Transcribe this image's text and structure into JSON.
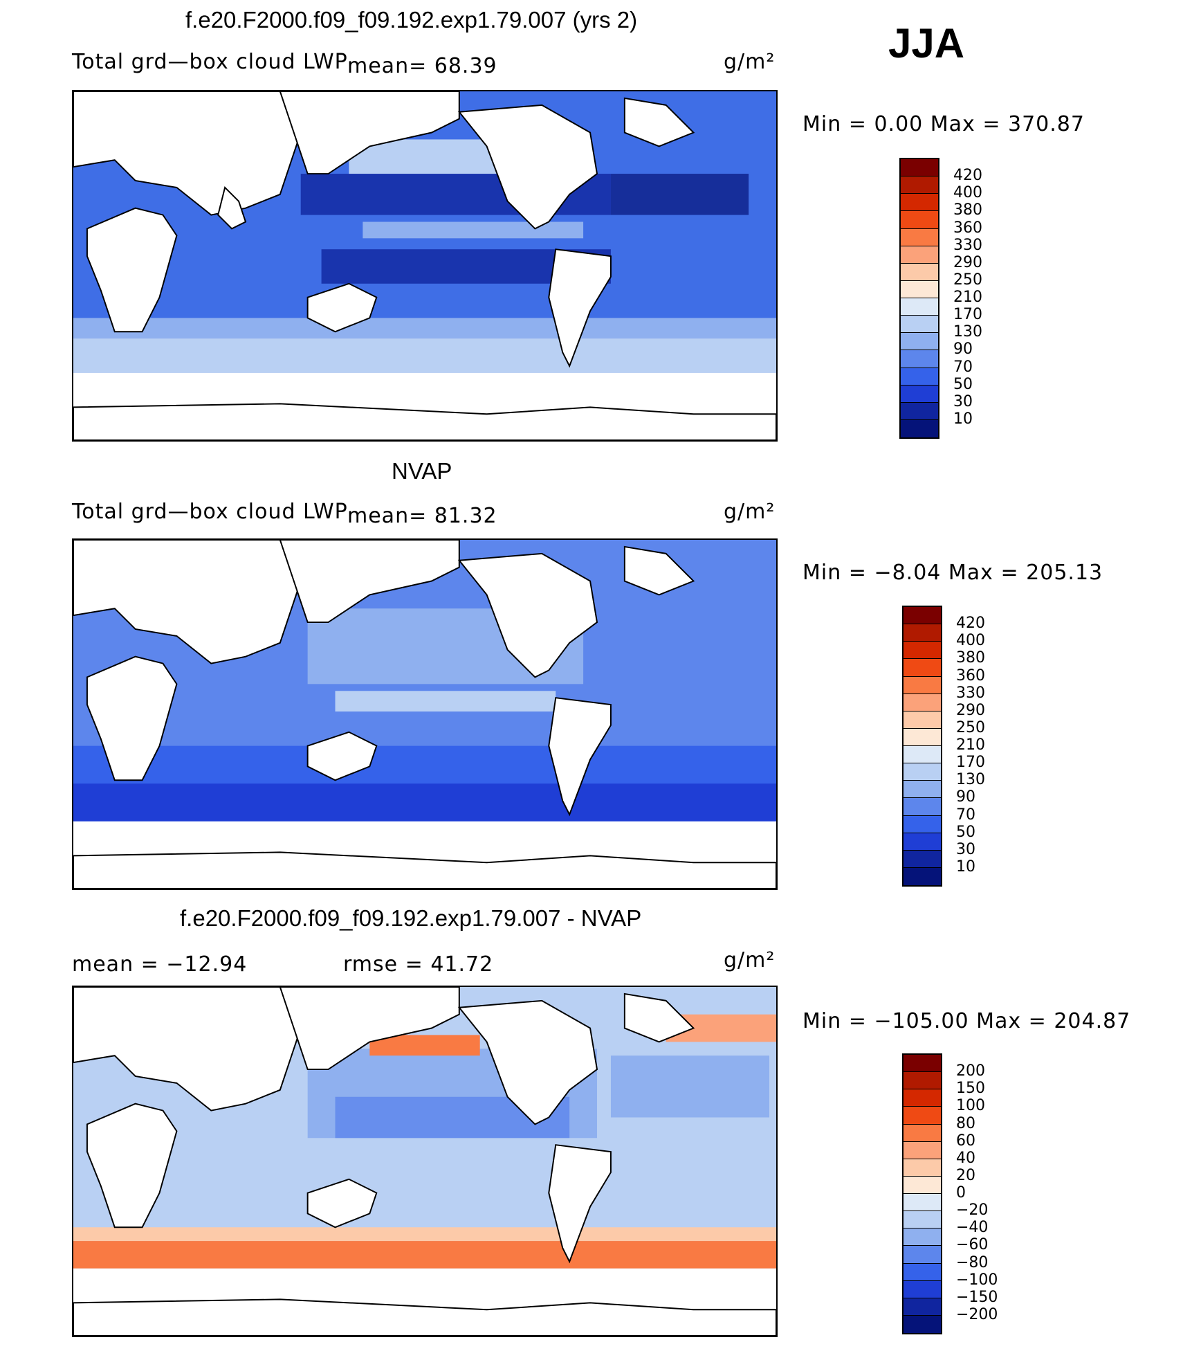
{
  "season": "JJA",
  "panels": [
    {
      "id": "model",
      "title": "f.e20.F2000.f09_f09.192.exp1.79.007 (yrs 2)",
      "variable": "Total grd—box cloud LWP",
      "mean_text": "mean=   68.39",
      "units": "g/m²",
      "minmax": "Min  =     0.00  Max  =  370.87",
      "colorbar_labels": [
        "420",
        "400",
        "380",
        "360",
        "330",
        "290",
        "250",
        "210",
        "170",
        "130",
        "90",
        "70",
        "50",
        "30",
        "10"
      ]
    },
    {
      "id": "obs",
      "title": "NVAP",
      "variable": "Total grd—box cloud LWP",
      "mean_text": "mean=   81.32",
      "units": "g/m²",
      "minmax": "Min  =   −8.04  Max  =  205.13",
      "colorbar_labels": [
        "420",
        "400",
        "380",
        "360",
        "330",
        "290",
        "250",
        "210",
        "170",
        "130",
        "90",
        "70",
        "50",
        "30",
        "10"
      ]
    },
    {
      "id": "diff",
      "title": "f.e20.F2000.f09_f09.192.exp1.79.007 - NVAP",
      "mean_text": "mean  =  −12.94",
      "rmse_text": "rmse  =    41.72",
      "units": "g/m²",
      "minmax": "Min  =  −105.00  Max  =  204.87",
      "colorbar_labels": [
        "200",
        "150",
        "100",
        "80",
        "60",
        "40",
        "20",
        "0",
        "−20",
        "−40",
        "−60",
        "−80",
        "−100",
        "−150",
        "−200"
      ]
    }
  ],
  "colors": {
    "lwp_scale": [
      "#7a0000",
      "#b01a00",
      "#d42800",
      "#ef4a14",
      "#f97a43",
      "#fba27a",
      "#fccaa9",
      "#fde8d6",
      "#dde9f7",
      "#b9d0f3",
      "#8fb0ef",
      "#5d86ec",
      "#3562ea",
      "#1f3ed5",
      "#10259f",
      "#051379"
    ],
    "diff_scale": [
      "#7a0000",
      "#b01a00",
      "#d42800",
      "#ef4a14",
      "#f97a43",
      "#fba27a",
      "#fccaa9",
      "#fde8d6",
      "#dde9f7",
      "#b9d0f3",
      "#8fb0ef",
      "#5d86ec",
      "#3562ea",
      "#1f3ed5",
      "#10259f",
      "#051379"
    ],
    "land": "#ffffff",
    "coast": "#000000"
  },
  "chart_data": [
    {
      "type": "heatmap",
      "title": "f.e20.F2000.f09_f09.192.exp1.79.007 (yrs 2)",
      "subtitle": "Total grd—box cloud LWP",
      "units": "g/m²",
      "mean": 68.39,
      "min": 0.0,
      "max": 370.87,
      "levels": [
        10,
        30,
        50,
        70,
        90,
        130,
        170,
        210,
        250,
        290,
        330,
        360,
        380,
        400,
        420
      ]
    },
    {
      "type": "heatmap",
      "title": "NVAP",
      "subtitle": "Total grd—box cloud LWP",
      "units": "g/m²",
      "mean": 81.32,
      "min": -8.04,
      "max": 205.13,
      "levels": [
        10,
        30,
        50,
        70,
        90,
        130,
        170,
        210,
        250,
        290,
        330,
        360,
        380,
        400,
        420
      ]
    },
    {
      "type": "heatmap",
      "title": "f.e20.F2000.f09_f09.192.exp1.79.007 - NVAP",
      "units": "g/m²",
      "mean": -12.94,
      "rmse": 41.72,
      "min": -105.0,
      "max": 204.87,
      "levels": [
        -200,
        -150,
        -100,
        -80,
        -60,
        -40,
        -20,
        0,
        20,
        40,
        60,
        80,
        100,
        150,
        200
      ]
    }
  ]
}
